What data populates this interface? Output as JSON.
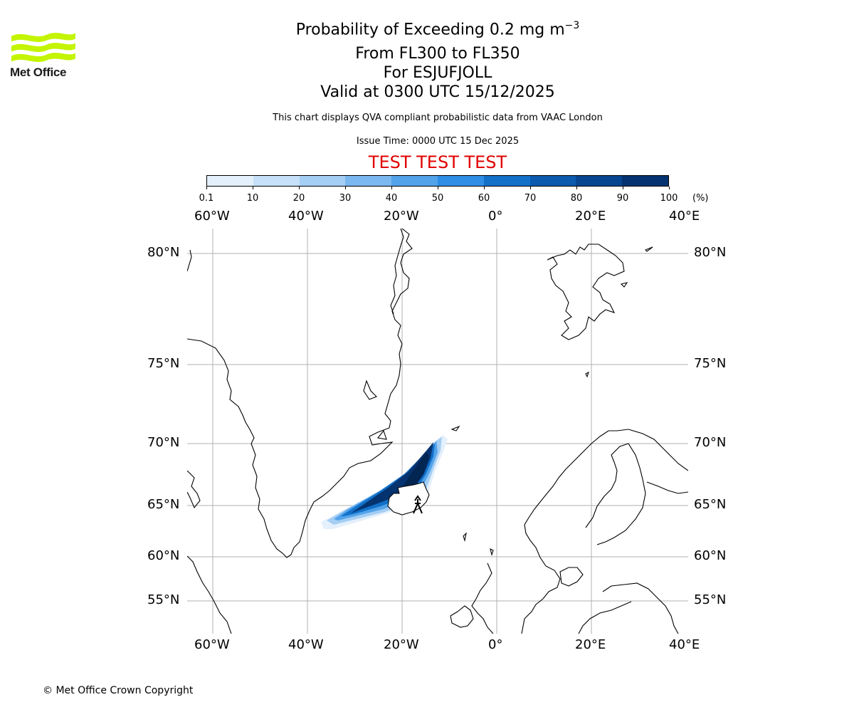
{
  "logo": {
    "text": "Met Office",
    "accent_color": "#c3f400"
  },
  "header": {
    "title_prefix": "Probability of Exceeding 0.2 mg m",
    "title_exponent": "−3",
    "flight_levels": "From FL300 to FL350",
    "volcano": "For ESJUFJOLL",
    "valid_time": "Valid at 0300 UTC 15/12/2025",
    "description": "This chart displays QVA compliant probabilistic data from VAAC London",
    "issue_time": "Issue Time: 0000 UTC 15 Dec 2025",
    "test_banner": "TEST TEST TEST",
    "test_color": "#e00000"
  },
  "colorbar": {
    "ticks": [
      "0.1",
      "10",
      "20",
      "30",
      "40",
      "50",
      "60",
      "70",
      "80",
      "90",
      "100"
    ],
    "unit": "(%)",
    "colors": [
      "#e4f0fb",
      "#c5e0f8",
      "#a5cef4",
      "#7ab8ef",
      "#52a3ea",
      "#2e8ee4",
      "#1270c8",
      "#0b5aad",
      "#084591",
      "#05336f",
      "#032552"
    ]
  },
  "map": {
    "lon_labels": [
      "60°W",
      "40°W",
      "20°W",
      "0°",
      "20°E",
      "40°E"
    ],
    "lat_labels": [
      "80°N",
      "75°N",
      "70°N",
      "65°N",
      "60°N",
      "55°N"
    ],
    "volcano_marker": "volcano-symbol"
  },
  "footer": {
    "copyright": "© Met Office Crown Copyright"
  }
}
